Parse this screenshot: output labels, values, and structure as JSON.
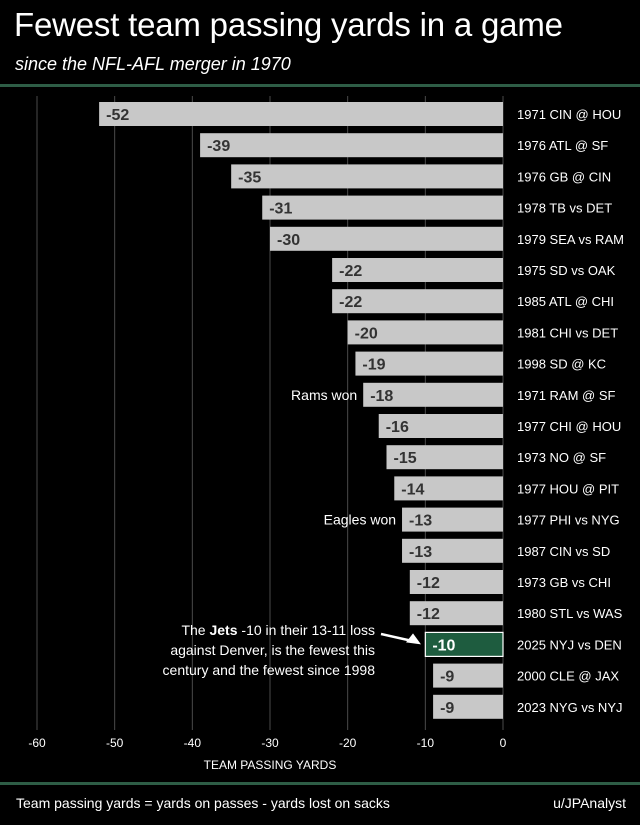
{
  "header": {
    "title": "Fewest team passing yards in a game",
    "subtitle": "since the NFL-AFL merger in 1970"
  },
  "footer": {
    "note": "Team passing yards = yards on passes - yards lost on sacks",
    "credit": "u/JPAnalyst"
  },
  "callout": {
    "prefix": "The ",
    "team": "Jets",
    "rest": " -10 in their 13-11 loss against Denver, is the fewest this century and the fewest since 1998"
  },
  "colors": {
    "bar": "#c8c8c8",
    "highlight": "#1e5c3f",
    "grid": "#4a4a4a",
    "accent_rule": "#2e5d46"
  },
  "chart_data": {
    "type": "bar",
    "orientation": "horizontal",
    "title": "Fewest team passing yards in a game",
    "xlabel": "TEAM PASSING YARDS",
    "ylabel": "",
    "xlim": [
      -60,
      0
    ],
    "xticks": [
      -60,
      -50,
      -40,
      -30,
      -20,
      -10,
      0
    ],
    "grid": true,
    "categories": [
      "1971 CIN @ HOU",
      "1976 ATL @ SF",
      "1976 GB @ CIN",
      "1978 TB vs DET",
      "1979 SEA vs RAM",
      "1975 SD vs OAK",
      "1985 ATL @ CHI",
      "1981 CHI vs DET",
      "1998 SD @ KC",
      "1971 RAM @ SF",
      "1977 CHI @ HOU",
      "1973 NO @ SF",
      "1977 HOU @ PIT",
      "1977 PHI vs NYG",
      "1987 CIN vs SD",
      "1973 GB vs CHI",
      "1980 STL vs WAS",
      "2025 NYJ vs DEN",
      "2000 CLE @ JAX",
      "2023 NYG vs NYJ"
    ],
    "values": [
      -52,
      -39,
      -35,
      -31,
      -30,
      -22,
      -22,
      -20,
      -19,
      -18,
      -16,
      -15,
      -14,
      -13,
      -13,
      -12,
      -12,
      -10,
      -9,
      -9
    ],
    "data_labels": [
      "-52",
      "-39",
      "-35",
      "-31",
      "-30",
      "-22",
      "-22",
      "-20",
      "-19",
      "-18",
      "-16",
      "-15",
      "-14",
      "-13",
      "-13",
      "-12",
      "-12",
      "-10",
      "-9",
      "-9"
    ],
    "highlight_index": 17,
    "annotations": [
      {
        "category": "1971 RAM @ SF",
        "text": "Rams won"
      },
      {
        "category": "1977 PHI vs NYG",
        "text": "Eagles won"
      }
    ]
  }
}
